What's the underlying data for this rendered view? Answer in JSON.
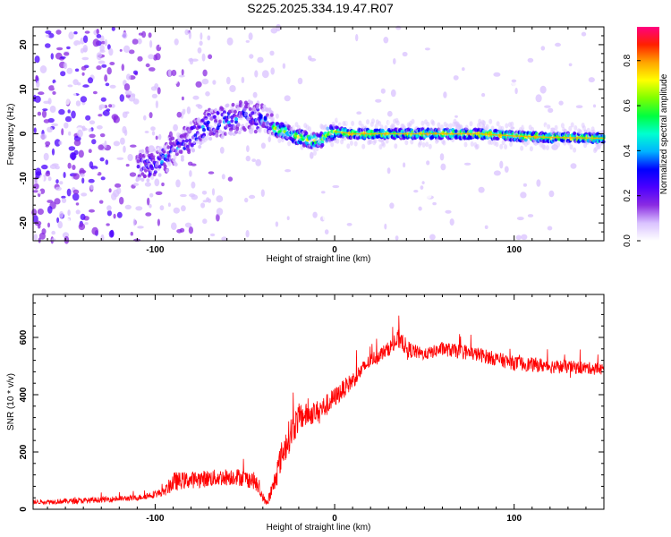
{
  "title": "S225.2025.334.19.47.R07",
  "chart_data": [
    {
      "type": "heatmap",
      "name": "spectrogram",
      "xlabel": "Height of straight line (km)",
      "ylabel": "Frequency (Hz)",
      "xlim": [
        -168,
        150
      ],
      "ylim": [
        -24,
        24
      ],
      "xticks": [
        -100,
        0,
        100
      ],
      "yticks": [
        -20,
        -10,
        0,
        10,
        20
      ],
      "colorbar": {
        "label": "Normalized spectral amplitude",
        "range": [
          0,
          0.95
        ],
        "ticks": [
          "0.0",
          "0.2",
          "0.4",
          "0.6",
          "0.8"
        ],
        "colors": [
          "#ffffff",
          "#d9c2ff",
          "#8a2be2",
          "#4b00ff",
          "#0000ff",
          "#00b4ff",
          "#00ffd0",
          "#00ff40",
          "#7fff00",
          "#ffff00",
          "#ffa500",
          "#ff2000",
          "#ff0080"
        ]
      },
      "ridge": {
        "x": [
          -100,
          -90,
          -80,
          -70,
          -60,
          -50,
          -40,
          -32,
          -25,
          -18,
          -12,
          -8,
          -4,
          0,
          5,
          10,
          20,
          30,
          40,
          60,
          80,
          100,
          120,
          150
        ],
        "frequency": [
          -7,
          -4,
          -1,
          2,
          3,
          4,
          3,
          1,
          0,
          -1,
          -1.5,
          -1.5,
          0,
          0.5,
          0.3,
          0,
          0,
          0,
          0,
          0,
          0,
          -0.5,
          -0.8,
          -1
        ]
      }
    },
    {
      "type": "line",
      "name": "snr",
      "xlabel": "Height of straight line (km)",
      "ylabel": "SNR (10 * v/v)",
      "xlim": [
        -168,
        150
      ],
      "ylim": [
        0,
        750
      ],
      "xticks": [
        -100,
        0,
        100
      ],
      "yticks": [
        0,
        200,
        400,
        600
      ],
      "color": "#ff0000",
      "envelope": {
        "x": [
          -168,
          -140,
          -110,
          -95,
          -90,
          -85,
          -75,
          -65,
          -55,
          -45,
          -38,
          -35,
          -30,
          -25,
          -20,
          -15,
          -10,
          -5,
          0,
          10,
          20,
          30,
          37,
          40,
          50,
          60,
          80,
          100,
          120,
          150
        ],
        "mean": [
          25,
          30,
          40,
          60,
          95,
          100,
          105,
          110,
          115,
          100,
          20,
          60,
          180,
          260,
          320,
          330,
          340,
          360,
          390,
          450,
          520,
          560,
          600,
          560,
          540,
          560,
          540,
          510,
          500,
          490
        ],
        "spread": [
          15,
          20,
          20,
          30,
          70,
          60,
          60,
          60,
          60,
          60,
          20,
          60,
          100,
          120,
          100,
          80,
          80,
          80,
          70,
          60,
          50,
          50,
          80,
          60,
          40,
          50,
          50,
          50,
          50,
          40
        ]
      }
    }
  ]
}
